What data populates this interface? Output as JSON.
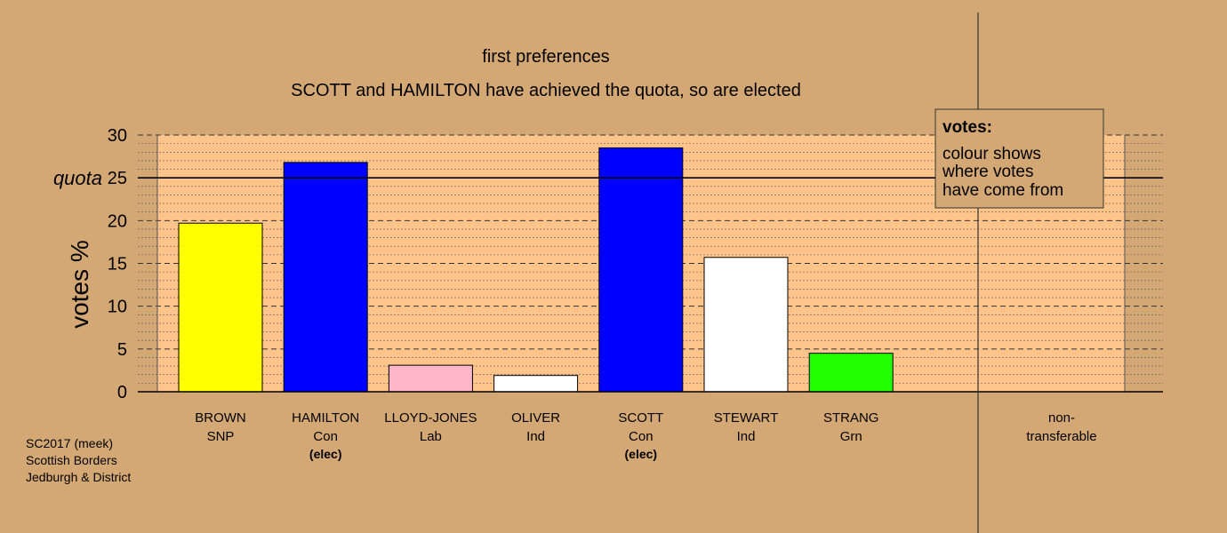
{
  "chart_data": {
    "type": "bar",
    "title": "first preferences",
    "subtitle": "SCOTT and HAMILTON have achieved the quota, so are elected",
    "ylabel": "votes %",
    "ylim": [
      0,
      30
    ],
    "yticks": [
      0,
      5,
      10,
      15,
      20,
      25,
      30
    ],
    "quota": {
      "value": 25,
      "label": "quota"
    },
    "grid": true,
    "categories": [
      {
        "name": "BROWN",
        "party": "SNP",
        "status": "",
        "value": 19.7,
        "color": "#ffff00"
      },
      {
        "name": "HAMILTON",
        "party": "Con",
        "status": "(elec)",
        "value": 26.8,
        "color": "#0000ff"
      },
      {
        "name": "LLOYD-JONES",
        "party": "Lab",
        "status": "",
        "value": 3.1,
        "color": "#ffb6c8"
      },
      {
        "name": "OLIVER",
        "party": "Ind",
        "status": "",
        "value": 1.9,
        "color": "#ffffff"
      },
      {
        "name": "SCOTT",
        "party": "Con",
        "status": "(elec)",
        "value": 28.5,
        "color": "#0000ff"
      },
      {
        "name": "STEWART",
        "party": "Ind",
        "status": "",
        "value": 15.7,
        "color": "#ffffff"
      },
      {
        "name": "STRANG",
        "party": "Grn",
        "status": "",
        "value": 4.5,
        "color": "#22ff00"
      }
    ],
    "nontransferable": {
      "label_line1": "non-",
      "label_line2": "transferable",
      "value": 0
    },
    "legend": {
      "heading": "votes:",
      "lines": [
        "colour shows",
        "where votes",
        "have come from"
      ],
      "position": "top-right"
    }
  },
  "footer": {
    "line1": "SC2017 (meek)",
    "line2": "Scottish Borders",
    "line3": "Jedburgh & District"
  },
  "colors": {
    "page_background": "#d4a874",
    "plot_background": "#ffc48a"
  }
}
